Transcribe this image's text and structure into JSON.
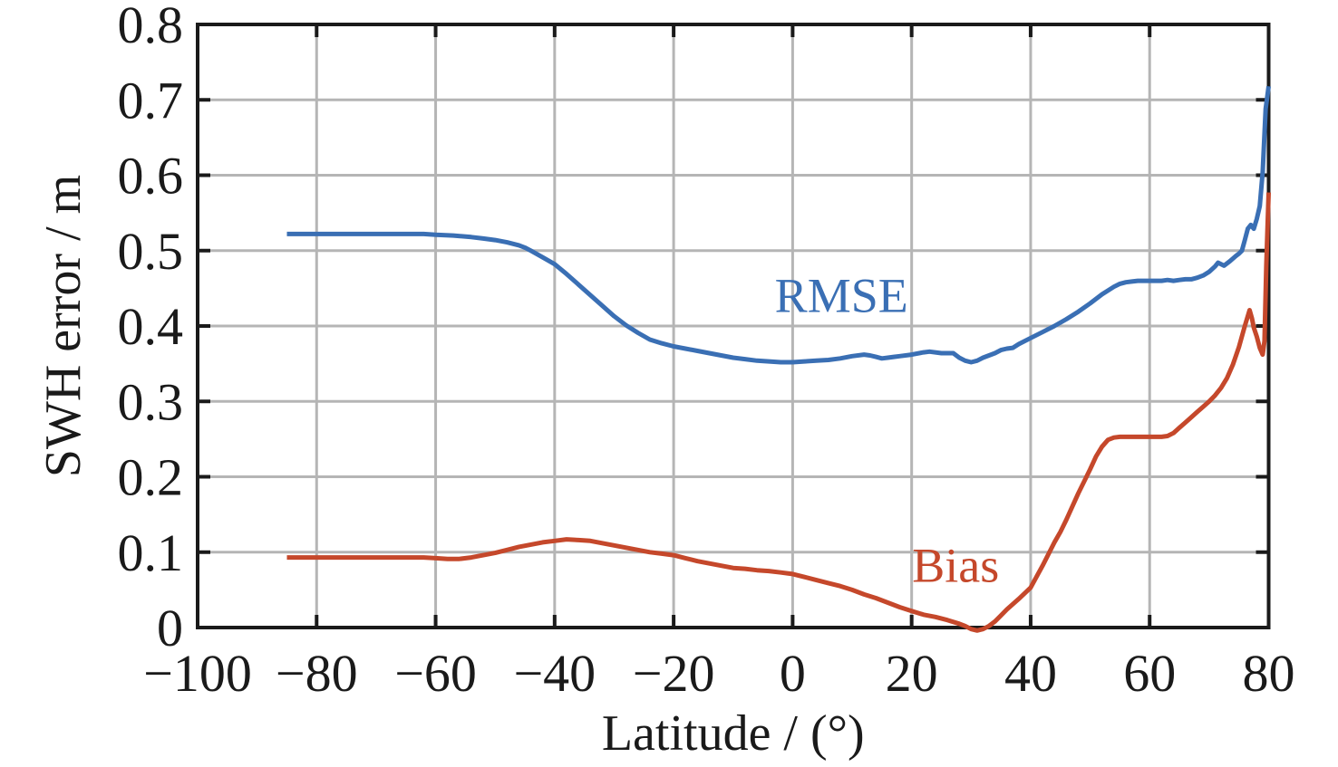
{
  "figure": {
    "background_color": "#ffffff",
    "axis_color": "#1a1a1a",
    "grid_color": "#b5b5b5",
    "text_color": "#1a1a1a"
  },
  "chart_data": {
    "type": "line",
    "title": "",
    "xlabel": "Latitude / (°)",
    "ylabel": "SWH error / m",
    "xlim": [
      -100,
      80
    ],
    "ylim": [
      0,
      0.8
    ],
    "grid": true,
    "legend_position": "inline-curve-annotations",
    "x_ticks": [
      -100,
      -80,
      -60,
      -40,
      -20,
      0,
      20,
      40,
      60,
      80
    ],
    "x_tick_labels": [
      "−100",
      "−80",
      "−60",
      "−40",
      "−20",
      "0",
      "20",
      "40",
      "60",
      "80"
    ],
    "y_ticks": [
      0,
      0.1,
      0.2,
      0.3,
      0.4,
      0.5,
      0.6,
      0.7,
      0.8
    ],
    "y_tick_labels": [
      "0",
      "0.1",
      "0.2",
      "0.3",
      "0.4",
      "0.5",
      "0.6",
      "0.7",
      "0.8"
    ],
    "series": [
      {
        "name": "RMSE",
        "color": "#3A6FB4",
        "label_at": [
          8.2,
          0.44
        ],
        "points": [
          [
            -85,
            0.522
          ],
          [
            -80,
            0.522
          ],
          [
            -75,
            0.522
          ],
          [
            -70,
            0.522
          ],
          [
            -65,
            0.522
          ],
          [
            -62,
            0.522
          ],
          [
            -60,
            0.521
          ],
          [
            -57,
            0.52
          ],
          [
            -54,
            0.518
          ],
          [
            -52,
            0.516
          ],
          [
            -50,
            0.514
          ],
          [
            -48,
            0.511
          ],
          [
            -46,
            0.507
          ],
          [
            -45,
            0.504
          ],
          [
            -44,
            0.5
          ],
          [
            -42,
            0.491
          ],
          [
            -40,
            0.482
          ],
          [
            -38,
            0.469
          ],
          [
            -36,
            0.455
          ],
          [
            -34,
            0.441
          ],
          [
            -32,
            0.427
          ],
          [
            -30,
            0.413
          ],
          [
            -28,
            0.401
          ],
          [
            -26,
            0.391
          ],
          [
            -24,
            0.382
          ],
          [
            -22,
            0.377
          ],
          [
            -20,
            0.373
          ],
          [
            -18,
            0.37
          ],
          [
            -16,
            0.367
          ],
          [
            -14,
            0.364
          ],
          [
            -12,
            0.361
          ],
          [
            -10,
            0.358
          ],
          [
            -8,
            0.356
          ],
          [
            -6,
            0.354
          ],
          [
            -4,
            0.353
          ],
          [
            -2,
            0.352
          ],
          [
            0,
            0.352
          ],
          [
            2,
            0.353
          ],
          [
            4,
            0.354
          ],
          [
            6,
            0.355
          ],
          [
            8,
            0.357
          ],
          [
            10,
            0.36
          ],
          [
            12,
            0.362
          ],
          [
            13,
            0.361
          ],
          [
            14,
            0.359
          ],
          [
            15,
            0.357
          ],
          [
            16,
            0.358
          ],
          [
            17,
            0.359
          ],
          [
            18,
            0.36
          ],
          [
            20,
            0.362
          ],
          [
            22,
            0.365
          ],
          [
            23,
            0.366
          ],
          [
            25,
            0.364
          ],
          [
            27,
            0.364
          ],
          [
            28,
            0.358
          ],
          [
            29,
            0.354
          ],
          [
            30,
            0.352
          ],
          [
            31,
            0.354
          ],
          [
            32,
            0.358
          ],
          [
            34,
            0.364
          ],
          [
            35,
            0.368
          ],
          [
            36,
            0.37
          ],
          [
            37,
            0.371
          ],
          [
            38,
            0.376
          ],
          [
            40,
            0.384
          ],
          [
            42,
            0.392
          ],
          [
            44,
            0.4
          ],
          [
            46,
            0.409
          ],
          [
            48,
            0.419
          ],
          [
            50,
            0.43
          ],
          [
            52,
            0.442
          ],
          [
            54,
            0.452
          ],
          [
            55,
            0.456
          ],
          [
            56,
            0.458
          ],
          [
            57,
            0.459
          ],
          [
            58,
            0.46
          ],
          [
            60,
            0.46
          ],
          [
            62,
            0.46
          ],
          [
            63,
            0.461
          ],
          [
            64,
            0.46
          ],
          [
            65,
            0.461
          ],
          [
            66,
            0.462
          ],
          [
            67,
            0.462
          ],
          [
            68,
            0.464
          ],
          [
            69,
            0.467
          ],
          [
            70,
            0.472
          ],
          [
            71,
            0.479
          ],
          [
            71.5,
            0.484
          ],
          [
            72.5,
            0.48
          ],
          [
            73.5,
            0.486
          ],
          [
            74.5,
            0.493
          ],
          [
            75,
            0.496
          ],
          [
            75.5,
            0.5
          ],
          [
            76,
            0.514
          ],
          [
            76.5,
            0.529
          ],
          [
            77,
            0.534
          ],
          [
            77.5,
            0.529
          ],
          [
            78,
            0.542
          ],
          [
            78.5,
            0.559
          ],
          [
            79,
            0.604
          ],
          [
            79.5,
            0.688
          ],
          [
            80,
            0.718
          ]
        ]
      },
      {
        "name": "Bias",
        "color": "#C5482B",
        "label_at": [
          27.4,
          0.082
        ],
        "points": [
          [
            -85,
            0.093
          ],
          [
            -80,
            0.093
          ],
          [
            -75,
            0.093
          ],
          [
            -70,
            0.093
          ],
          [
            -65,
            0.093
          ],
          [
            -62,
            0.093
          ],
          [
            -60,
            0.092
          ],
          [
            -58,
            0.091
          ],
          [
            -56,
            0.091
          ],
          [
            -54,
            0.093
          ],
          [
            -52,
            0.096
          ],
          [
            -50,
            0.099
          ],
          [
            -48,
            0.103
          ],
          [
            -46,
            0.107
          ],
          [
            -44,
            0.11
          ],
          [
            -42,
            0.113
          ],
          [
            -40,
            0.115
          ],
          [
            -38,
            0.117
          ],
          [
            -36,
            0.116
          ],
          [
            -34,
            0.115
          ],
          [
            -32,
            0.112
          ],
          [
            -30,
            0.109
          ],
          [
            -28,
            0.106
          ],
          [
            -26,
            0.103
          ],
          [
            -24,
            0.1
          ],
          [
            -22,
            0.098
          ],
          [
            -20,
            0.096
          ],
          [
            -18,
            0.092
          ],
          [
            -16,
            0.088
          ],
          [
            -14,
            0.085
          ],
          [
            -12,
            0.082
          ],
          [
            -10,
            0.079
          ],
          [
            -8,
            0.078
          ],
          [
            -6,
            0.076
          ],
          [
            -4,
            0.075
          ],
          [
            -2,
            0.073
          ],
          [
            0,
            0.071
          ],
          [
            2,
            0.067
          ],
          [
            4,
            0.063
          ],
          [
            6,
            0.059
          ],
          [
            8,
            0.055
          ],
          [
            10,
            0.05
          ],
          [
            12,
            0.044
          ],
          [
            14,
            0.039
          ],
          [
            16,
            0.033
          ],
          [
            18,
            0.027
          ],
          [
            20,
            0.022
          ],
          [
            22,
            0.017
          ],
          [
            24,
            0.014
          ],
          [
            26,
            0.01
          ],
          [
            28,
            0.005
          ],
          [
            29,
            0.002
          ],
          [
            30,
            -0.002
          ],
          [
            31,
            -0.004
          ],
          [
            32,
            -0.002
          ],
          [
            33,
            0.002
          ],
          [
            34,
            0.008
          ],
          [
            35,
            0.016
          ],
          [
            36,
            0.024
          ],
          [
            38,
            0.038
          ],
          [
            40,
            0.053
          ],
          [
            42,
            0.082
          ],
          [
            44,
            0.113
          ],
          [
            45,
            0.127
          ],
          [
            46,
            0.143
          ],
          [
            48,
            0.178
          ],
          [
            50,
            0.21
          ],
          [
            51,
            0.227
          ],
          [
            52,
            0.24
          ],
          [
            53,
            0.249
          ],
          [
            54,
            0.252
          ],
          [
            55,
            0.253
          ],
          [
            57,
            0.253
          ],
          [
            60,
            0.253
          ],
          [
            62,
            0.253
          ],
          [
            63,
            0.254
          ],
          [
            64,
            0.258
          ],
          [
            65,
            0.265
          ],
          [
            66,
            0.272
          ],
          [
            67,
            0.279
          ],
          [
            68,
            0.286
          ],
          [
            69,
            0.293
          ],
          [
            70,
            0.3
          ],
          [
            71,
            0.308
          ],
          [
            72,
            0.318
          ],
          [
            73,
            0.331
          ],
          [
            74,
            0.349
          ],
          [
            75,
            0.372
          ],
          [
            76,
            0.4
          ],
          [
            76.8,
            0.421
          ],
          [
            77.2,
            0.41
          ],
          [
            77.5,
            0.398
          ],
          [
            78,
            0.386
          ],
          [
            78.5,
            0.371
          ],
          [
            79,
            0.362
          ],
          [
            79.3,
            0.38
          ],
          [
            79.6,
            0.48
          ],
          [
            80,
            0.577
          ]
        ]
      }
    ]
  }
}
